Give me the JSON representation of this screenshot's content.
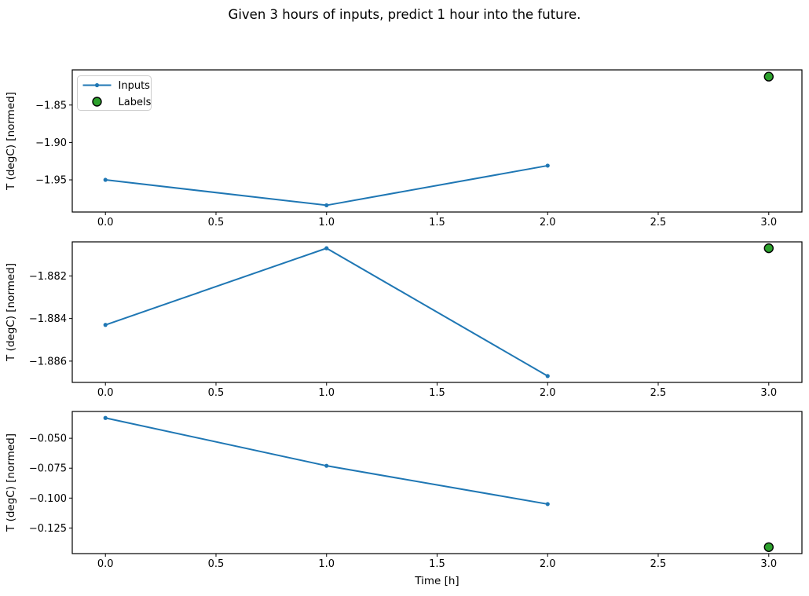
{
  "title": "Given 3 hours of inputs, predict 1 hour into the future.",
  "colors": {
    "inputs_line": "#1f77b4",
    "labels_fill": "#2ca02c",
    "labels_edge": "#000000",
    "axis": "#000000",
    "legend_border": "#cccccc",
    "background": "#ffffff"
  },
  "legend": {
    "entries": [
      {
        "label": "Inputs",
        "type": "line-marker"
      },
      {
        "label": "Labels",
        "type": "scatter"
      }
    ]
  },
  "chart_data": [
    {
      "type": "line",
      "x": [
        0,
        1,
        2
      ],
      "series": [
        {
          "name": "Inputs",
          "values": [
            -1.95,
            -1.984,
            -1.931
          ]
        }
      ],
      "scatter": {
        "name": "Labels",
        "x": 3,
        "y": -1.812
      },
      "ylabel": "T (degC) [normed]",
      "xlabel": "",
      "yticks": [
        -1.85,
        -1.9,
        -1.95
      ],
      "ytick_labels": [
        "−1.85",
        "−1.90",
        "−1.95"
      ],
      "xticks": [
        0.0,
        0.5,
        1.0,
        1.5,
        2.0,
        2.5,
        3.0
      ],
      "xtick_labels": [
        "0.0",
        "0.5",
        "1.0",
        "1.5",
        "2.0",
        "2.5",
        "3.0"
      ],
      "xlim": [
        -0.15,
        3.15
      ],
      "ylim": [
        -1.993,
        -1.803
      ],
      "show_legend": true,
      "grid": false
    },
    {
      "type": "line",
      "x": [
        0,
        1,
        2
      ],
      "series": [
        {
          "name": "Inputs",
          "values": [
            -1.8843,
            -1.8807,
            -1.8867
          ]
        }
      ],
      "scatter": {
        "name": "Labels",
        "x": 3,
        "y": -1.8807
      },
      "ylabel": "T (degC) [normed]",
      "xlabel": "",
      "yticks": [
        -1.882,
        -1.884,
        -1.886
      ],
      "ytick_labels": [
        "−1.882",
        "−1.884",
        "−1.886"
      ],
      "xticks": [
        0.0,
        0.5,
        1.0,
        1.5,
        2.0,
        2.5,
        3.0
      ],
      "xtick_labels": [
        "0.0",
        "0.5",
        "1.0",
        "1.5",
        "2.0",
        "2.5",
        "3.0"
      ],
      "xlim": [
        -0.15,
        3.15
      ],
      "ylim": [
        -1.887,
        -1.8804
      ],
      "show_legend": false,
      "grid": false
    },
    {
      "type": "line",
      "x": [
        0,
        1,
        2
      ],
      "series": [
        {
          "name": "Inputs",
          "values": [
            -0.033,
            -0.073,
            -0.105
          ]
        }
      ],
      "scatter": {
        "name": "Labels",
        "x": 3,
        "y": -0.141
      },
      "ylabel": "T (degC) [normed]",
      "xlabel": "Time [h]",
      "yticks": [
        -0.05,
        -0.075,
        -0.1,
        -0.125
      ],
      "ytick_labels": [
        "−0.050",
        "−0.075",
        "−0.100",
        "−0.125"
      ],
      "xticks": [
        0.0,
        0.5,
        1.0,
        1.5,
        2.0,
        2.5,
        3.0
      ],
      "xtick_labels": [
        "0.0",
        "0.5",
        "1.0",
        "1.5",
        "2.0",
        "2.5",
        "3.0"
      ],
      "xlim": [
        -0.15,
        3.15
      ],
      "ylim": [
        -0.1464,
        -0.0276
      ],
      "show_legend": false,
      "grid": false
    }
  ]
}
